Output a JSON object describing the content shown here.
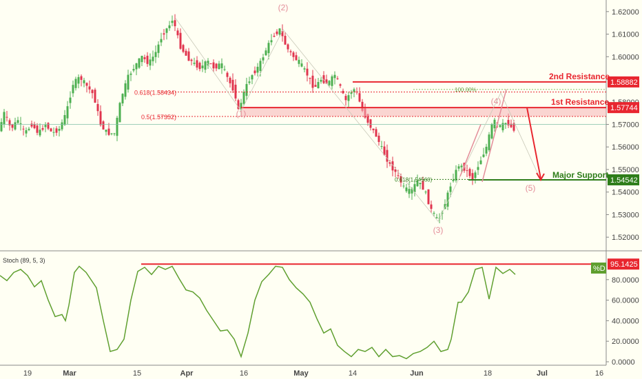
{
  "chart_data": [
    {
      "type": "candlestick",
      "ylim": [
        1.5167,
        1.6233
      ],
      "y_ticks": [
        "1.62000",
        "1.61000",
        "1.60000",
        "1.59000",
        "1.58000",
        "1.57000",
        "1.56000",
        "1.55000",
        "1.54000",
        "1.53000",
        "1.52000"
      ],
      "x_ticks": [
        "19",
        "Mar",
        "15",
        "Apr",
        "16",
        "May",
        "14",
        "Jun",
        "18",
        "Jul",
        "16"
      ],
      "current_price": 1.57,
      "price_series_approx": [
        [
          0,
          1.565
        ],
        [
          10,
          1.575
        ],
        [
          20,
          1.568
        ],
        [
          30,
          1.572
        ],
        [
          40,
          1.566
        ],
        [
          50,
          1.57
        ],
        [
          60,
          1.566
        ],
        [
          70,
          1.57
        ],
        [
          80,
          1.566
        ],
        [
          90,
          1.568
        ],
        [
          100,
          1.575
        ],
        [
          110,
          1.588
        ],
        [
          120,
          1.591
        ],
        [
          130,
          1.587
        ],
        [
          140,
          1.583
        ],
        [
          150,
          1.57
        ],
        [
          160,
          1.566
        ],
        [
          170,
          1.566
        ],
        [
          180,
          1.582
        ],
        [
          190,
          1.591
        ],
        [
          200,
          1.596
        ],
        [
          210,
          1.6
        ],
        [
          220,
          1.597
        ],
        [
          230,
          1.602
        ],
        [
          240,
          1.61
        ],
        [
          250,
          1.614
        ],
        [
          255,
          1.617
        ],
        [
          265,
          1.605
        ],
        [
          275,
          1.6
        ],
        [
          285,
          1.597
        ],
        [
          295,
          1.595
        ],
        [
          305,
          1.598
        ],
        [
          315,
          1.595
        ],
        [
          325,
          1.597
        ],
        [
          335,
          1.59
        ],
        [
          345,
          1.584
        ],
        [
          350,
          1.576
        ],
        [
          360,
          1.586
        ],
        [
          370,
          1.592
        ],
        [
          380,
          1.596
        ],
        [
          390,
          1.603
        ],
        [
          400,
          1.609
        ],
        [
          410,
          1.612
        ],
        [
          420,
          1.604
        ],
        [
          430,
          1.6
        ],
        [
          440,
          1.597
        ],
        [
          450,
          1.592
        ],
        [
          460,
          1.586
        ],
        [
          470,
          1.59
        ],
        [
          480,
          1.588
        ],
        [
          490,
          1.592
        ],
        [
          500,
          1.585
        ],
        [
          505,
          1.58
        ],
        [
          512,
          1.584
        ],
        [
          520,
          1.586
        ],
        [
          530,
          1.576
        ],
        [
          540,
          1.57
        ],
        [
          550,
          1.565
        ],
        [
          560,
          1.558
        ],
        [
          570,
          1.552
        ],
        [
          580,
          1.548
        ],
        [
          590,
          1.542
        ],
        [
          600,
          1.54
        ],
        [
          610,
          1.545
        ],
        [
          620,
          1.541
        ],
        [
          630,
          1.532
        ],
        [
          640,
          1.527
        ],
        [
          650,
          1.535
        ],
        [
          660,
          1.545
        ],
        [
          670,
          1.552
        ],
        [
          680,
          1.55
        ],
        [
          690,
          1.546
        ],
        [
          700,
          1.553
        ],
        [
          710,
          1.56
        ],
        [
          720,
          1.572
        ],
        [
          730,
          1.569
        ],
        [
          740,
          1.571
        ],
        [
          748,
          1.568
        ]
      ],
      "annotations": {
        "resistance_2": {
          "label": "2nd Resistance",
          "value": "1.58882"
        },
        "resistance_1": {
          "label": "1st Resistance",
          "value": "1.57744"
        },
        "support": {
          "label": "Major Support",
          "value": "1.54542"
        },
        "fib_0618": "0.618(1.58434)",
        "fib_05": "0.5(1.57352)",
        "fib_ext": "100.00%",
        "fib_sup": "0.618(1.54560)",
        "waves": [
          "(1)",
          "(2)",
          "(3)",
          "(4)",
          "(5)"
        ]
      },
      "colors": {
        "up": "#4caf50",
        "down": "#e0344e",
        "resistance": "#e8262f",
        "support": "#2e7d1a",
        "zone": "#f5b2b5"
      }
    },
    {
      "type": "line",
      "title": "Stoch (89, 5, 3)",
      "ylim": [
        0,
        102
      ],
      "y_ticks": [
        "80.0000",
        "60.0000",
        "40.0000",
        "20.0000",
        "0.0000"
      ],
      "level_label": "95.1425",
      "series": [
        {
          "name": "%D",
          "values_approx": [
            [
              0,
              84
            ],
            [
              10,
              79
            ],
            [
              20,
              87
            ],
            [
              30,
              90
            ],
            [
              40,
              84
            ],
            [
              50,
              73
            ],
            [
              60,
              79
            ],
            [
              70,
              60
            ],
            [
              80,
              44
            ],
            [
              90,
              46
            ],
            [
              95,
              40
            ],
            [
              100,
              55
            ],
            [
              108,
              87
            ],
            [
              115,
              93
            ],
            [
              125,
              87
            ],
            [
              140,
              72
            ],
            [
              150,
              40
            ],
            [
              160,
              10
            ],
            [
              170,
              12
            ],
            [
              180,
              22
            ],
            [
              190,
              60
            ],
            [
              200,
              88
            ],
            [
              210,
              92
            ],
            [
              220,
              85
            ],
            [
              230,
              93
            ],
            [
              240,
              90
            ],
            [
              250,
              93
            ],
            [
              260,
              81
            ],
            [
              270,
              70
            ],
            [
              280,
              68
            ],
            [
              290,
              62
            ],
            [
              300,
              50
            ],
            [
              310,
              40
            ],
            [
              320,
              30
            ],
            [
              330,
              31
            ],
            [
              340,
              22
            ],
            [
              350,
              5
            ],
            [
              360,
              28
            ],
            [
              370,
              60
            ],
            [
              380,
              78
            ],
            [
              390,
              85
            ],
            [
              400,
              93
            ],
            [
              410,
              92
            ],
            [
              420,
              80
            ],
            [
              430,
              72
            ],
            [
              440,
              66
            ],
            [
              450,
              58
            ],
            [
              460,
              42
            ],
            [
              470,
              28
            ],
            [
              480,
              32
            ],
            [
              490,
              16
            ],
            [
              500,
              10
            ],
            [
              510,
              5
            ],
            [
              520,
              12
            ],
            [
              530,
              10
            ],
            [
              540,
              14
            ],
            [
              550,
              5
            ],
            [
              560,
              12
            ],
            [
              570,
              5
            ],
            [
              580,
              6
            ],
            [
              590,
              3
            ],
            [
              600,
              8
            ],
            [
              610,
              10
            ],
            [
              620,
              14
            ],
            [
              630,
              20
            ],
            [
              640,
              10
            ],
            [
              650,
              12
            ],
            [
              655,
              22
            ],
            [
              660,
              40
            ],
            [
              665,
              58
            ],
            [
              670,
              58
            ],
            [
              680,
              68
            ],
            [
              690,
              90
            ],
            [
              700,
              92
            ],
            [
              710,
              61
            ],
            [
              720,
              92
            ],
            [
              730,
              86
            ],
            [
              740,
              90
            ],
            [
              748,
              85
            ]
          ]
        }
      ]
    }
  ]
}
